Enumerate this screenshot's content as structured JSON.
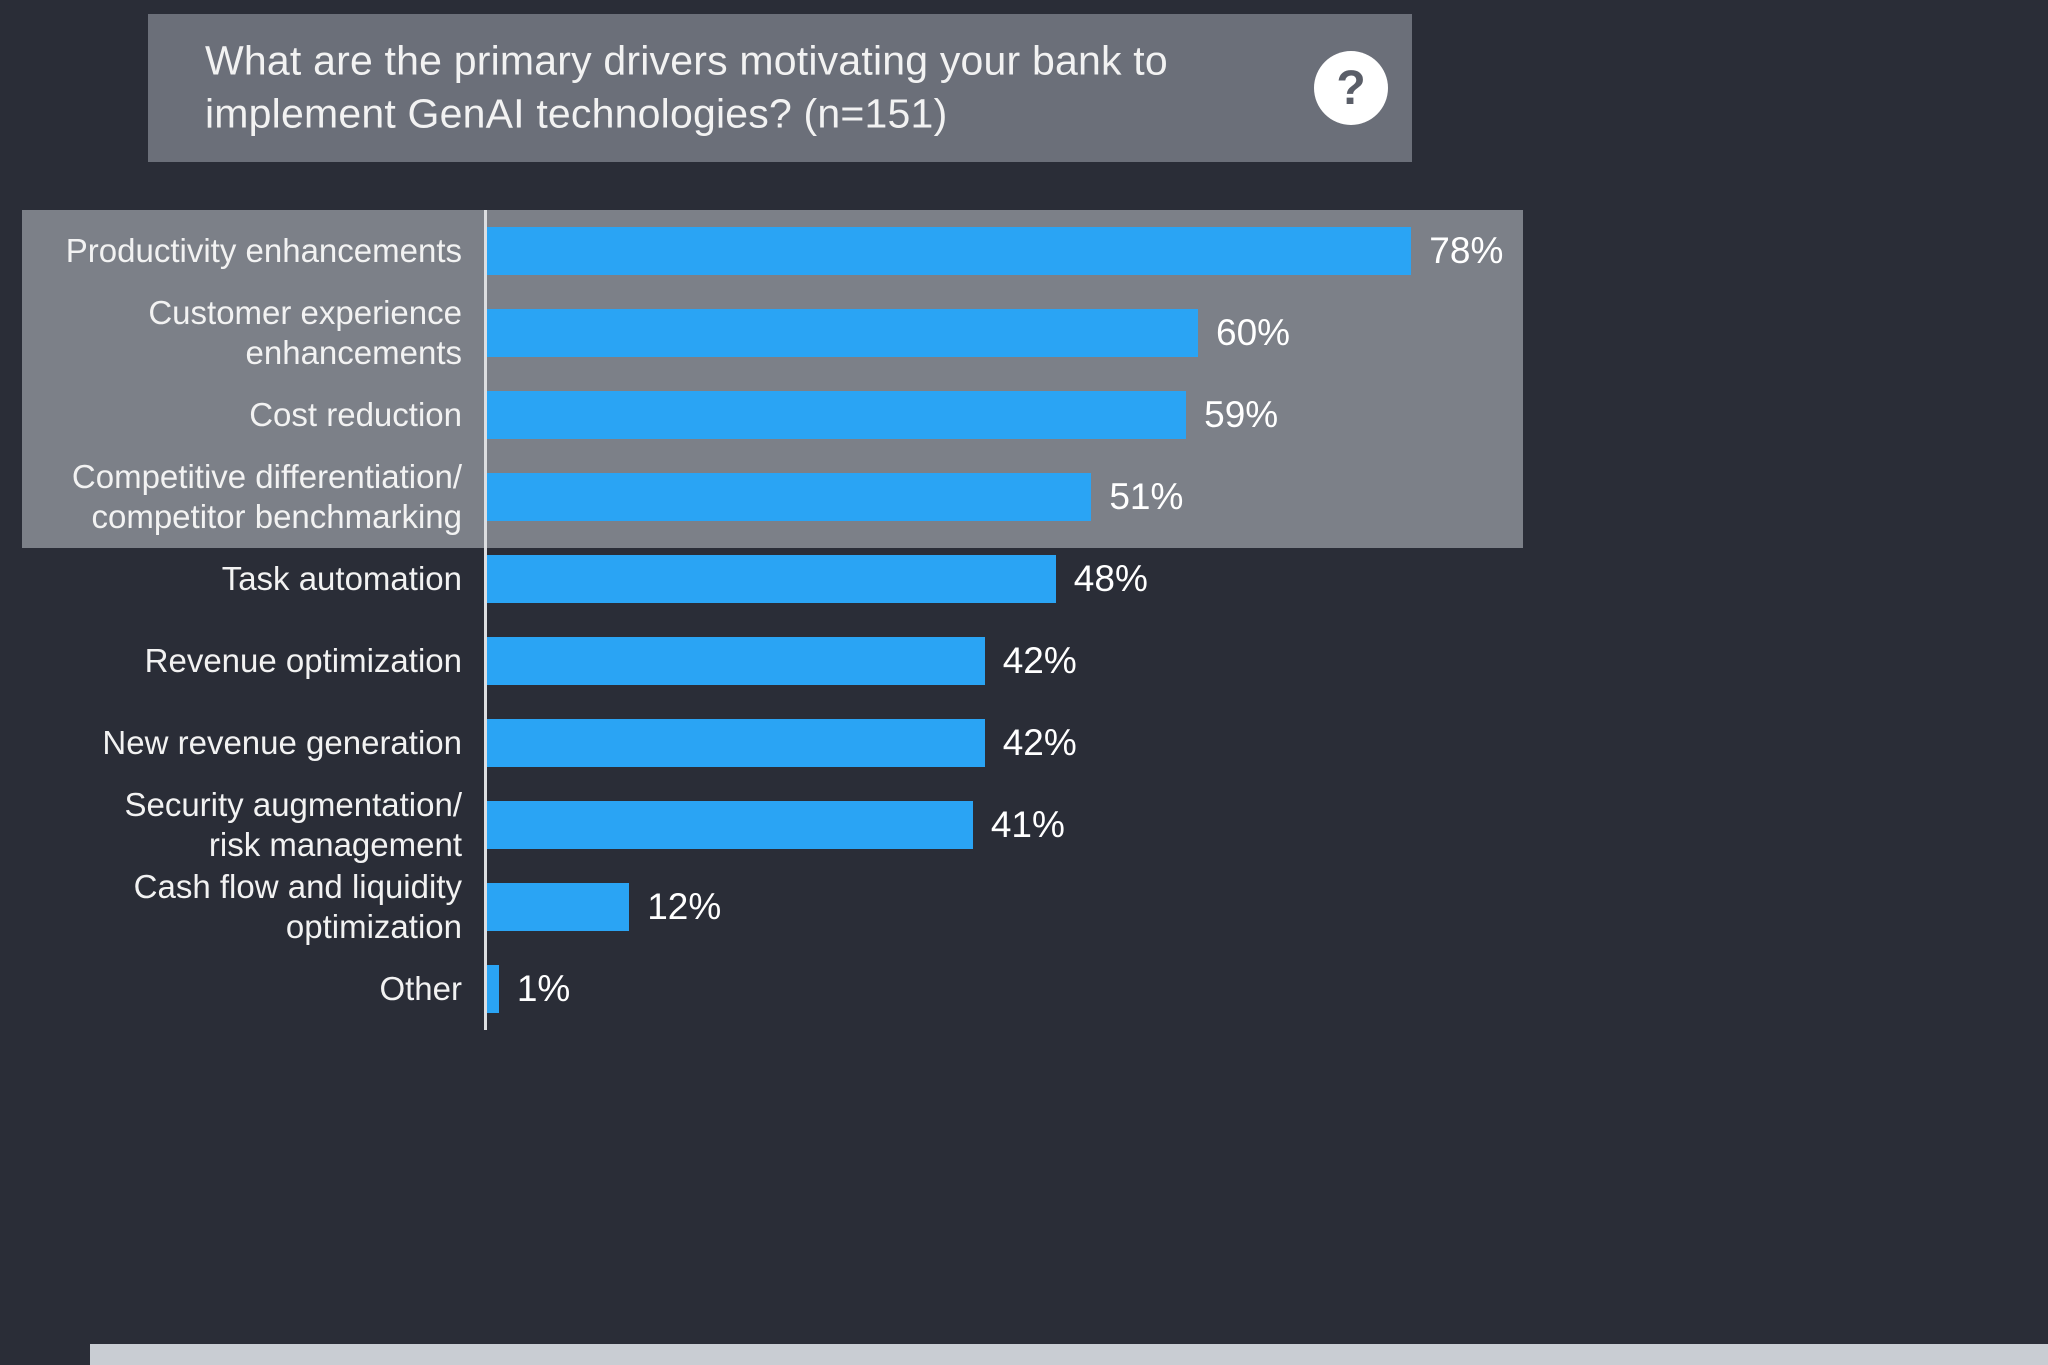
{
  "header": {
    "question": "What are the primary drivers motivating your bank to\nimplement GenAI technologies? (n=151)",
    "help_icon_glyph": "?"
  },
  "chart_data": {
    "type": "bar",
    "orientation": "horizontal",
    "title": "What are the primary drivers motivating your bank to implement GenAI technologies? (n=151)",
    "xlabel": "",
    "ylabel": "",
    "xlim": [
      0,
      100
    ],
    "grid": false,
    "legend": false,
    "categories": [
      "Productivity enhancements",
      "Customer experience\nenhancements",
      "Cost reduction",
      "Competitive differentiation/\ncompetitor benchmarking",
      "Task automation",
      "Revenue optimization",
      "New revenue generation",
      "Security augmentation/\nrisk management",
      "Cash flow and liquidity\noptimization",
      "Other"
    ],
    "values": [
      78,
      60,
      59,
      51,
      48,
      42,
      42,
      41,
      12,
      1
    ],
    "value_labels": [
      "78%",
      "60%",
      "59%",
      "51%",
      "48%",
      "42%",
      "42%",
      "41%",
      "12%",
      "1%"
    ],
    "highlighted_categories": [
      "Productivity enhancements",
      "Customer experience enhancements",
      "Cost reduction",
      "Competitive differentiation/ competitor benchmarking"
    ],
    "colors": {
      "bar": "#2AA4F4",
      "background": "#2A2D37",
      "header_box": "#6B6F79",
      "highlight_band": "#7C8088",
      "text": "#F2F2F2",
      "axis_line": "#DCDEE1",
      "footer_strip": "#C9CDD3"
    }
  }
}
